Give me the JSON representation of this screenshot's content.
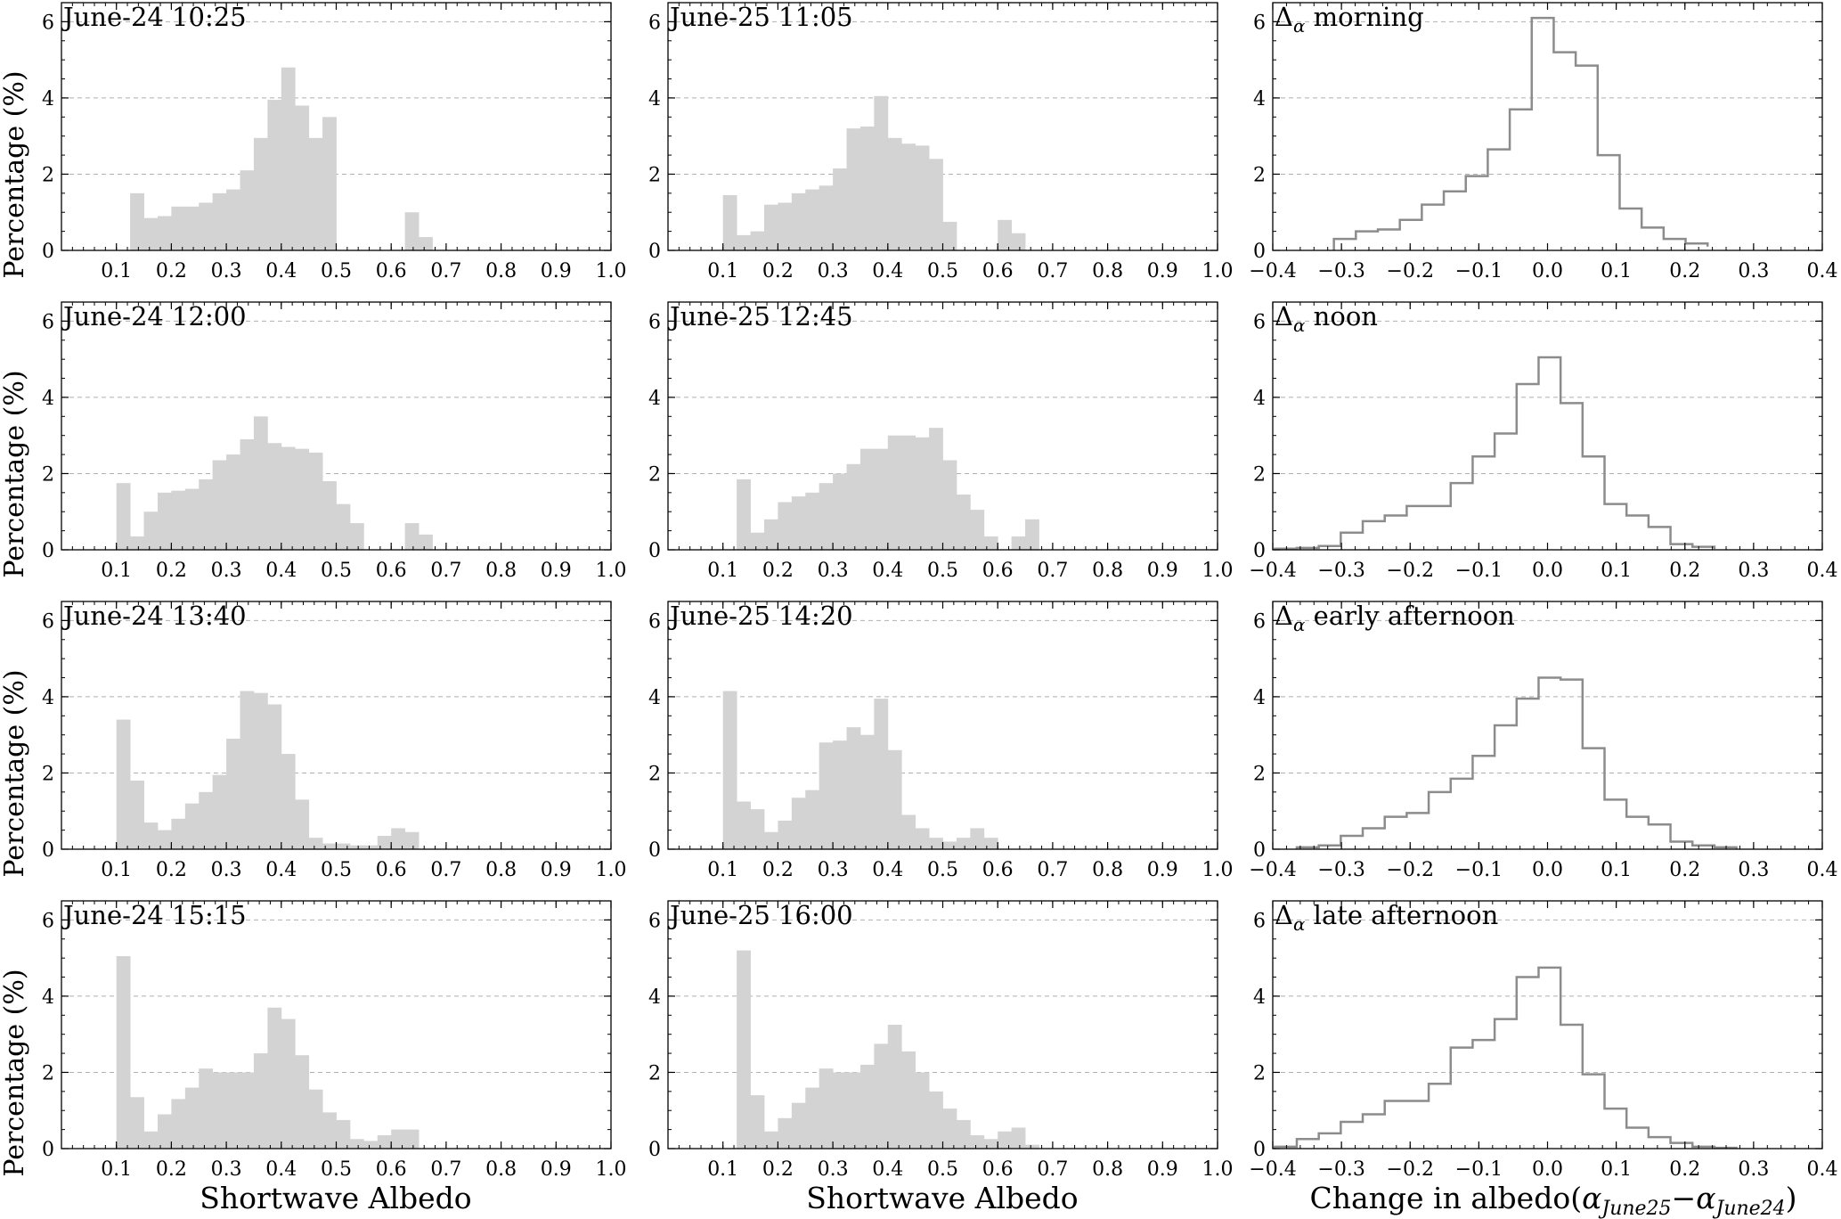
{
  "figure": {
    "y_label": "Percentage (%)",
    "x_label_albedo": "Shortwave Albedo",
    "x_label_change_prefix": "Change in albedo",
    "x_label_change_math": {
      "open": "(",
      "alpha": "α",
      "sub1": "June25",
      "minus": "−",
      "sub2": "June24",
      "close": ")"
    },
    "delta_symbol": "Δ",
    "delta_sub": "α",
    "colors": {
      "bar_fill": "#d3d3d3",
      "step_line": "#8c8c8c",
      "grid": "#b0b0b0"
    }
  },
  "chart_data": [
    {
      "type": "bar",
      "title": "June-24 10:25",
      "series": "hist_albedo",
      "bin_width": 0.025,
      "x": [
        0.125,
        0.15,
        0.175,
        0.2,
        0.225,
        0.25,
        0.275,
        0.3,
        0.325,
        0.35,
        0.375,
        0.4,
        0.425,
        0.45,
        0.475,
        0.5,
        0.525,
        0.55,
        0.575,
        0.6,
        0.625,
        0.65,
        0.675
      ],
      "values": [
        1.5,
        0.85,
        0.9,
        1.15,
        1.15,
        1.25,
        1.5,
        1.6,
        2.1,
        2.95,
        3.95,
        4.8,
        3.8,
        2.95,
        3.5,
        0,
        0,
        0,
        0,
        0,
        1.0,
        0.35,
        0
      ],
      "xlim": [
        0,
        1.0
      ],
      "ylim": [
        0,
        6.5
      ],
      "xticks": [
        0.1,
        0.2,
        0.3,
        0.4,
        0.5,
        0.6,
        0.7,
        0.8,
        0.9,
        1.0
      ],
      "yticks": [
        0,
        2,
        4,
        6
      ],
      "grid": "y-dashed"
    },
    {
      "type": "bar",
      "title": "June-25 11:05",
      "series": "hist_albedo",
      "bin_width": 0.025,
      "x": [
        0.1,
        0.125,
        0.15,
        0.175,
        0.2,
        0.225,
        0.25,
        0.275,
        0.3,
        0.325,
        0.35,
        0.375,
        0.4,
        0.425,
        0.45,
        0.475,
        0.5,
        0.525,
        0.55,
        0.575,
        0.6,
        0.625,
        0.65
      ],
      "values": [
        1.45,
        0.4,
        0.5,
        1.2,
        1.25,
        1.5,
        1.6,
        1.7,
        2.15,
        3.2,
        3.25,
        4.05,
        2.95,
        2.8,
        2.75,
        2.4,
        0.75,
        0,
        0,
        0,
        0.8,
        0.45,
        0
      ],
      "xlim": [
        0,
        1.0
      ],
      "ylim": [
        0,
        6.5
      ],
      "xticks": [
        0.1,
        0.2,
        0.3,
        0.4,
        0.5,
        0.6,
        0.7,
        0.8,
        0.9,
        1.0
      ],
      "yticks": [
        0,
        2,
        4,
        6
      ],
      "grid": "y-dashed"
    },
    {
      "type": "step",
      "title": "morning",
      "series": "delta_albedo",
      "bin_width": 0.032,
      "edges": [
        -0.311,
        -0.279,
        -0.247,
        -0.215,
        -0.183,
        -0.151,
        -0.119,
        -0.087,
        -0.055,
        -0.023,
        0.009,
        0.041,
        0.073,
        0.105,
        0.137,
        0.169,
        0.201,
        0.233
      ],
      "values": [
        0.3,
        0.5,
        0.55,
        0.8,
        1.2,
        1.55,
        1.95,
        2.65,
        3.7,
        6.1,
        5.2,
        4.85,
        2.5,
        1.1,
        0.6,
        0.3,
        0.18,
        0.1
      ],
      "xlim": [
        -0.4,
        0.4
      ],
      "ylim": [
        0,
        6.5
      ],
      "xticks": [
        -0.4,
        -0.3,
        -0.2,
        -0.1,
        0.0,
        0.1,
        0.2,
        0.3,
        0.4
      ],
      "yticks": [
        0,
        2,
        4,
        6
      ],
      "grid": "y-dashed"
    },
    {
      "type": "bar",
      "title": "June-24 12:00",
      "series": "hist_albedo",
      "bin_width": 0.025,
      "x": [
        0.1,
        0.125,
        0.15,
        0.175,
        0.2,
        0.225,
        0.25,
        0.275,
        0.3,
        0.325,
        0.35,
        0.375,
        0.4,
        0.425,
        0.45,
        0.475,
        0.5,
        0.525,
        0.55,
        0.575,
        0.6,
        0.625,
        0.65,
        0.675
      ],
      "values": [
        1.75,
        0.35,
        1.0,
        1.5,
        1.55,
        1.6,
        1.85,
        2.35,
        2.5,
        2.9,
        3.5,
        2.8,
        2.7,
        2.65,
        2.55,
        1.8,
        1.2,
        0.7,
        0,
        0,
        0,
        0.7,
        0.4,
        0
      ],
      "xlim": [
        0,
        1.0
      ],
      "ylim": [
        0,
        6.5
      ],
      "xticks": [
        0.1,
        0.2,
        0.3,
        0.4,
        0.5,
        0.6,
        0.7,
        0.8,
        0.9,
        1.0
      ],
      "yticks": [
        0,
        2,
        4,
        6
      ],
      "grid": "y-dashed"
    },
    {
      "type": "bar",
      "title": "June-25 12:45",
      "series": "hist_albedo",
      "bin_width": 0.025,
      "x": [
        0.125,
        0.15,
        0.175,
        0.2,
        0.225,
        0.25,
        0.275,
        0.3,
        0.325,
        0.35,
        0.375,
        0.4,
        0.425,
        0.45,
        0.475,
        0.5,
        0.525,
        0.55,
        0.575,
        0.6,
        0.625,
        0.65,
        0.675
      ],
      "values": [
        1.85,
        0.45,
        0.8,
        1.25,
        1.4,
        1.5,
        1.75,
        2.0,
        2.25,
        2.65,
        2.65,
        3.0,
        3.0,
        2.95,
        3.2,
        2.35,
        1.45,
        1.05,
        0.35,
        0,
        0.35,
        0.8,
        0
      ],
      "xlim": [
        0,
        1.0
      ],
      "ylim": [
        0,
        6.5
      ],
      "xticks": [
        0.1,
        0.2,
        0.3,
        0.4,
        0.5,
        0.6,
        0.7,
        0.8,
        0.9,
        1.0
      ],
      "yticks": [
        0,
        2,
        4,
        6
      ],
      "grid": "y-dashed"
    },
    {
      "type": "step",
      "title": "noon",
      "series": "delta_albedo",
      "bin_width": 0.032,
      "edges": [
        -0.397,
        -0.365,
        -0.333,
        -0.301,
        -0.269,
        -0.237,
        -0.205,
        -0.173,
        -0.141,
        -0.109,
        -0.077,
        -0.045,
        -0.013,
        0.019,
        0.051,
        0.083,
        0.115,
        0.147,
        0.179,
        0.211,
        0.243
      ],
      "values": [
        0.03,
        0.05,
        0.1,
        0.45,
        0.75,
        0.9,
        1.15,
        1.15,
        1.75,
        2.45,
        3.05,
        4.35,
        5.05,
        3.85,
        2.45,
        1.2,
        0.9,
        0.6,
        0.15,
        0.08,
        0.02
      ],
      "xlim": [
        -0.4,
        0.4
      ],
      "ylim": [
        0,
        6.5
      ],
      "xticks": [
        -0.4,
        -0.3,
        -0.2,
        -0.1,
        0.0,
        0.1,
        0.2,
        0.3,
        0.4
      ],
      "yticks": [
        0,
        2,
        4,
        6
      ],
      "grid": "y-dashed"
    },
    {
      "type": "bar",
      "title": "June-24 13:40",
      "series": "hist_albedo",
      "bin_width": 0.025,
      "x": [
        0.1,
        0.125,
        0.15,
        0.175,
        0.2,
        0.225,
        0.25,
        0.275,
        0.3,
        0.325,
        0.35,
        0.375,
        0.4,
        0.425,
        0.45,
        0.475,
        0.5,
        0.525,
        0.55,
        0.575,
        0.6,
        0.625,
        0.65,
        0.675
      ],
      "values": [
        3.4,
        1.8,
        0.7,
        0.5,
        0.8,
        1.2,
        1.5,
        1.95,
        2.9,
        4.15,
        4.1,
        3.8,
        2.5,
        1.3,
        0.3,
        0.15,
        0.15,
        0.1,
        0.1,
        0.35,
        0.55,
        0.45,
        0,
        0
      ],
      "xlim": [
        0,
        1.0
      ],
      "ylim": [
        0,
        6.5
      ],
      "xticks": [
        0.1,
        0.2,
        0.3,
        0.4,
        0.5,
        0.6,
        0.7,
        0.8,
        0.9,
        1.0
      ],
      "yticks": [
        0,
        2,
        4,
        6
      ],
      "grid": "y-dashed"
    },
    {
      "type": "bar",
      "title": "June-25 14:20",
      "series": "hist_albedo",
      "bin_width": 0.025,
      "x": [
        0.1,
        0.125,
        0.15,
        0.175,
        0.2,
        0.225,
        0.25,
        0.275,
        0.3,
        0.325,
        0.35,
        0.375,
        0.4,
        0.425,
        0.45,
        0.475,
        0.5,
        0.525,
        0.55,
        0.575,
        0.6,
        0.625,
        0.65,
        0.675
      ],
      "values": [
        4.15,
        1.25,
        1.05,
        0.45,
        0.75,
        1.35,
        1.55,
        2.8,
        2.85,
        3.2,
        3.0,
        3.95,
        2.6,
        0.9,
        0.55,
        0.3,
        0.2,
        0.3,
        0.55,
        0.3,
        0,
        0,
        0,
        0
      ],
      "xlim": [
        0,
        1.0
      ],
      "ylim": [
        0,
        6.5
      ],
      "xticks": [
        0.1,
        0.2,
        0.3,
        0.4,
        0.5,
        0.6,
        0.7,
        0.8,
        0.9,
        1.0
      ],
      "yticks": [
        0,
        2,
        4,
        6
      ],
      "grid": "y-dashed"
    },
    {
      "type": "step",
      "title": "early afternoon",
      "series": "delta_albedo",
      "bin_width": 0.032,
      "edges": [
        -0.365,
        -0.333,
        -0.301,
        -0.269,
        -0.237,
        -0.205,
        -0.173,
        -0.141,
        -0.109,
        -0.077,
        -0.045,
        -0.013,
        0.019,
        0.051,
        0.083,
        0.115,
        0.147,
        0.179,
        0.211,
        0.243,
        0.275
      ],
      "values": [
        0.05,
        0.1,
        0.35,
        0.55,
        0.85,
        0.95,
        1.5,
        1.85,
        2.45,
        3.25,
        3.95,
        4.5,
        4.45,
        2.65,
        1.3,
        0.85,
        0.65,
        0.2,
        0.1,
        0.05
      ],
      "xlim": [
        -0.4,
        0.4
      ],
      "ylim": [
        0,
        6.5
      ],
      "xticks": [
        -0.4,
        -0.3,
        -0.2,
        -0.1,
        0.0,
        0.1,
        0.2,
        0.3,
        0.4
      ],
      "yticks": [
        0,
        2,
        4,
        6
      ],
      "grid": "y-dashed"
    },
    {
      "type": "bar",
      "title": "June-24 15:15",
      "series": "hist_albedo",
      "bin_width": 0.025,
      "x": [
        0.1,
        0.125,
        0.15,
        0.175,
        0.2,
        0.225,
        0.25,
        0.275,
        0.3,
        0.325,
        0.35,
        0.375,
        0.4,
        0.425,
        0.45,
        0.475,
        0.5,
        0.525,
        0.55,
        0.575,
        0.6,
        0.625,
        0.65,
        0.675
      ],
      "values": [
        5.05,
        1.35,
        0.45,
        0.9,
        1.3,
        1.6,
        2.1,
        2.0,
        2.0,
        2.0,
        2.5,
        3.7,
        3.4,
        2.45,
        1.55,
        0.95,
        0.75,
        0.25,
        0.2,
        0.35,
        0.5,
        0.5,
        0,
        0
      ],
      "xlim": [
        0,
        1.0
      ],
      "ylim": [
        0,
        6.5
      ],
      "xticks": [
        0.1,
        0.2,
        0.3,
        0.4,
        0.5,
        0.6,
        0.7,
        0.8,
        0.9,
        1.0
      ],
      "yticks": [
        0,
        2,
        4,
        6
      ],
      "grid": "y-dashed"
    },
    {
      "type": "bar",
      "title": "June-25 16:00",
      "series": "hist_albedo",
      "bin_width": 0.025,
      "x": [
        0.125,
        0.15,
        0.175,
        0.2,
        0.225,
        0.25,
        0.275,
        0.3,
        0.325,
        0.35,
        0.375,
        0.4,
        0.425,
        0.45,
        0.475,
        0.5,
        0.525,
        0.55,
        0.575,
        0.6,
        0.625,
        0.65,
        0.675
      ],
      "values": [
        5.2,
        1.4,
        0.45,
        0.8,
        1.2,
        1.6,
        2.1,
        2.0,
        2.0,
        2.2,
        2.75,
        3.25,
        2.55,
        2.0,
        1.5,
        1.05,
        0.75,
        0.35,
        0.25,
        0.45,
        0.55,
        0.1,
        0
      ],
      "xlim": [
        0,
        1.0
      ],
      "ylim": [
        0,
        6.5
      ],
      "xticks": [
        0.1,
        0.2,
        0.3,
        0.4,
        0.5,
        0.6,
        0.7,
        0.8,
        0.9,
        1.0
      ],
      "yticks": [
        0,
        2,
        4,
        6
      ],
      "grid": "y-dashed"
    },
    {
      "type": "step",
      "title": "late afternoon",
      "series": "delta_albedo",
      "bin_width": 0.032,
      "edges": [
        -0.397,
        -0.365,
        -0.333,
        -0.301,
        -0.269,
        -0.237,
        -0.205,
        -0.173,
        -0.141,
        -0.109,
        -0.077,
        -0.045,
        -0.013,
        0.019,
        0.051,
        0.083,
        0.115,
        0.147,
        0.179,
        0.211,
        0.243,
        0.275
      ],
      "values": [
        0.05,
        0.25,
        0.4,
        0.7,
        0.9,
        1.25,
        1.25,
        1.7,
        2.65,
        2.85,
        3.4,
        4.5,
        4.75,
        3.25,
        1.95,
        1.05,
        0.55,
        0.3,
        0.15,
        0.05,
        0.02
      ],
      "xlim": [
        -0.4,
        0.4
      ],
      "ylim": [
        0,
        6.5
      ],
      "xticks": [
        -0.4,
        -0.3,
        -0.2,
        -0.1,
        0.0,
        0.1,
        0.2,
        0.3,
        0.4
      ],
      "yticks": [
        0,
        2,
        4,
        6
      ],
      "grid": "y-dashed"
    }
  ]
}
